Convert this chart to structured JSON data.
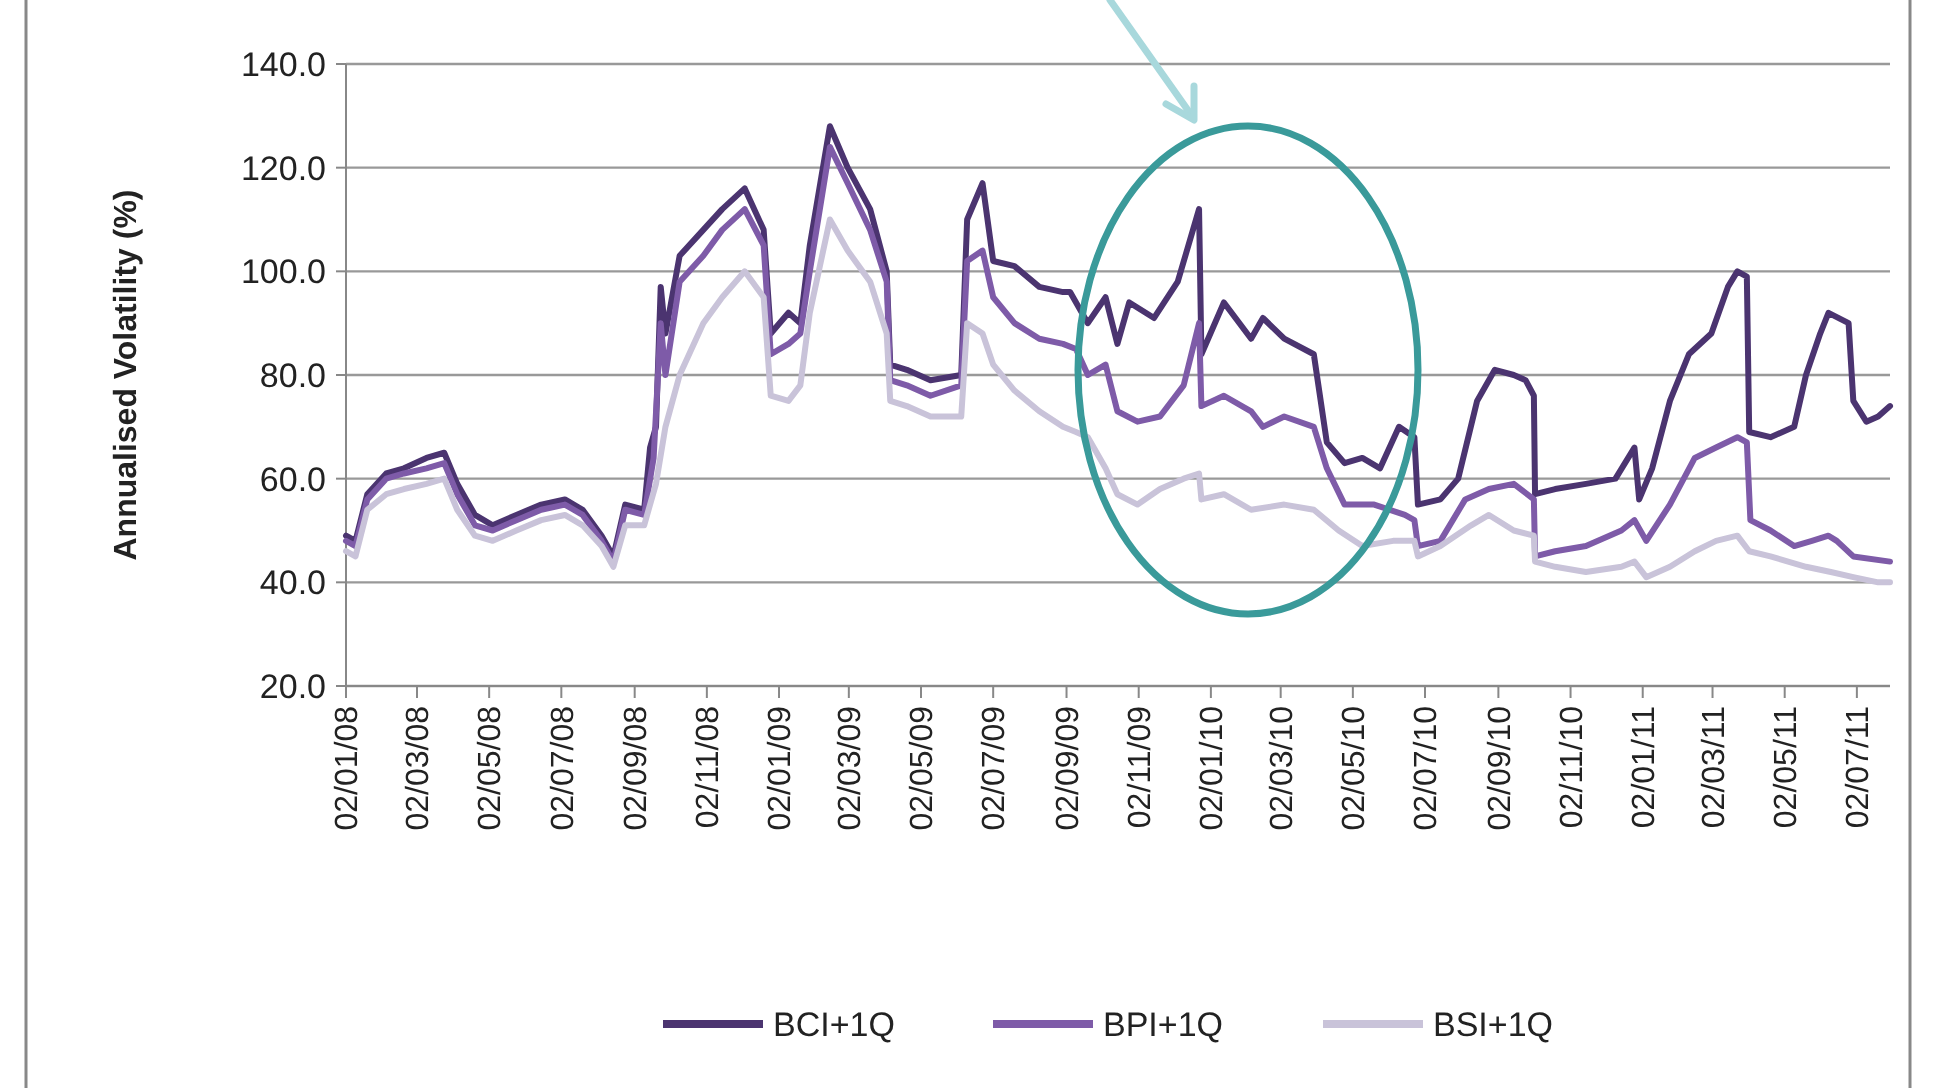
{
  "chart_data": {
    "type": "line",
    "ylabel": "Annualised Volatility (%)",
    "xlim": [
      "2008-01-02",
      "2011-07-30"
    ],
    "ylim": [
      20,
      140
    ],
    "yticks": [
      {
        "value": 20,
        "label": "20.0"
      },
      {
        "value": 40,
        "label": "40.0"
      },
      {
        "value": 60,
        "label": "60.0"
      },
      {
        "value": 80,
        "label": "80.0"
      },
      {
        "value": 100,
        "label": "100.0"
      },
      {
        "value": 120,
        "label": "120.0"
      },
      {
        "value": 140,
        "label": "140.0"
      }
    ],
    "xticks": [
      {
        "value": "2008-01-02",
        "label": "02/01/08"
      },
      {
        "value": "2008-03-02",
        "label": "02/03/08"
      },
      {
        "value": "2008-05-02",
        "label": "02/05/08"
      },
      {
        "value": "2008-07-02",
        "label": "02/07/08"
      },
      {
        "value": "2008-09-02",
        "label": "02/09/08"
      },
      {
        "value": "2008-11-02",
        "label": "02/11/08"
      },
      {
        "value": "2009-01-02",
        "label": "02/01/09"
      },
      {
        "value": "2009-03-02",
        "label": "02/03/09"
      },
      {
        "value": "2009-05-02",
        "label": "02/05/09"
      },
      {
        "value": "2009-07-02",
        "label": "02/07/09"
      },
      {
        "value": "2009-09-02",
        "label": "02/09/09"
      },
      {
        "value": "2009-11-02",
        "label": "02/11/09"
      },
      {
        "value": "2010-01-02",
        "label": "02/01/10"
      },
      {
        "value": "2010-03-02",
        "label": "02/03/10"
      },
      {
        "value": "2010-05-02",
        "label": "02/05/10"
      },
      {
        "value": "2010-07-02",
        "label": "02/07/10"
      },
      {
        "value": "2010-09-02",
        "label": "02/09/10"
      },
      {
        "value": "2010-11-02",
        "label": "02/11/10"
      },
      {
        "value": "2011-01-02",
        "label": "02/01/11"
      },
      {
        "value": "2011-03-02",
        "label": "02/03/11"
      },
      {
        "value": "2011-05-02",
        "label": "02/05/11"
      },
      {
        "value": "2011-07-02",
        "label": "02/07/11"
      }
    ],
    "grid": "y",
    "legend": "bottom",
    "line_style": "solid",
    "series": [
      {
        "name": "BCI+1Q",
        "color": "#4b3470",
        "x": [
          "2008-01-02",
          "2008-01-10",
          "2008-01-20",
          "2008-02-05",
          "2008-02-20",
          "2008-03-10",
          "2008-03-25",
          "2008-04-05",
          "2008-04-20",
          "2008-05-05",
          "2008-05-25",
          "2008-06-15",
          "2008-07-05",
          "2008-07-20",
          "2008-08-05",
          "2008-08-15",
          "2008-08-25",
          "2008-09-10",
          "2008-09-15",
          "2008-09-20",
          "2008-09-24",
          "2008-09-28",
          "2008-10-10",
          "2008-10-30",
          "2008-11-15",
          "2008-12-04",
          "2008-12-20",
          "2008-12-26",
          "2009-01-10",
          "2009-01-20",
          "2009-01-28",
          "2009-02-14",
          "2009-03-01",
          "2009-03-20",
          "2009-04-03",
          "2009-04-06",
          "2009-04-20",
          "2009-05-10",
          "2009-06-05",
          "2009-06-10",
          "2009-06-23",
          "2009-07-02",
          "2009-07-20",
          "2009-08-10",
          "2009-08-30",
          "2009-09-05",
          "2009-09-20",
          "2009-10-05",
          "2009-10-15",
          "2009-10-25",
          "2009-11-15",
          "2009-12-05",
          "2009-12-23",
          "2009-12-25",
          "2010-01-13",
          "2010-02-05",
          "2010-02-15",
          "2010-03-05",
          "2010-03-30",
          "2010-04-10",
          "2010-04-25",
          "2010-05-10",
          "2010-05-25",
          "2010-06-10",
          "2010-06-23",
          "2010-06-26",
          "2010-07-15",
          "2010-07-30",
          "2010-08-15",
          "2010-08-30",
          "2010-09-15",
          "2010-09-25",
          "2010-10-02",
          "2010-10-03",
          "2010-10-20",
          "2010-11-15",
          "2010-12-10",
          "2010-12-26",
          "2010-12-30",
          "2011-01-10",
          "2011-01-25",
          "2011-02-10",
          "2011-03-01",
          "2011-03-15",
          "2011-03-23",
          "2011-03-31",
          "2011-04-02",
          "2011-04-20",
          "2011-05-10",
          "2011-05-20",
          "2011-06-01",
          "2011-06-08",
          "2011-06-25",
          "2011-06-29",
          "2011-07-10",
          "2011-07-20",
          "2011-07-30"
        ],
        "values": [
          49,
          48,
          57,
          61,
          62,
          64,
          65,
          59,
          53,
          51,
          53,
          55,
          56,
          54,
          49,
          45,
          55,
          54,
          66,
          70,
          97,
          88,
          103,
          108,
          112,
          116,
          108,
          88,
          92,
          90,
          105,
          128,
          120,
          112,
          100,
          82,
          81,
          79,
          80,
          110,
          117,
          102,
          101,
          97,
          96,
          96,
          90,
          95,
          86,
          94,
          91,
          98,
          112,
          84,
          94,
          87,
          91,
          87,
          84,
          67,
          63,
          64,
          62,
          70,
          68,
          55,
          56,
          60,
          75,
          81,
          80,
          79,
          76,
          57,
          58,
          59,
          60,
          66,
          56,
          62,
          75,
          84,
          88,
          97,
          100,
          99,
          69,
          68,
          70,
          80,
          88,
          92,
          90,
          75,
          71,
          72,
          74
        ]
      },
      {
        "name": "BPI+1Q",
        "color": "#7e5ba8",
        "x": [
          "2008-01-02",
          "2008-01-10",
          "2008-01-20",
          "2008-02-05",
          "2008-02-20",
          "2008-03-10",
          "2008-03-25",
          "2008-04-05",
          "2008-04-20",
          "2008-05-05",
          "2008-05-25",
          "2008-06-15",
          "2008-07-05",
          "2008-07-20",
          "2008-08-05",
          "2008-08-15",
          "2008-08-25",
          "2008-09-10",
          "2008-09-18",
          "2008-09-24",
          "2008-09-28",
          "2008-10-10",
          "2008-10-30",
          "2008-11-15",
          "2008-12-04",
          "2008-12-20",
          "2008-12-26",
          "2009-01-10",
          "2009-01-20",
          "2009-01-28",
          "2009-02-14",
          "2009-03-01",
          "2009-03-20",
          "2009-04-03",
          "2009-04-06",
          "2009-04-20",
          "2009-05-10",
          "2009-06-05",
          "2009-06-10",
          "2009-06-23",
          "2009-07-02",
          "2009-07-20",
          "2009-08-10",
          "2009-08-30",
          "2009-09-10",
          "2009-09-20",
          "2009-10-05",
          "2009-10-15",
          "2009-11-01",
          "2009-11-20",
          "2009-12-10",
          "2009-12-23",
          "2009-12-25",
          "2010-01-13",
          "2010-02-05",
          "2010-02-15",
          "2010-03-05",
          "2010-03-30",
          "2010-04-10",
          "2010-04-25",
          "2010-05-20",
          "2010-06-15",
          "2010-06-23",
          "2010-06-26",
          "2010-07-15",
          "2010-08-05",
          "2010-08-25",
          "2010-09-15",
          "2010-10-02",
          "2010-10-03",
          "2010-10-20",
          "2010-11-15",
          "2010-12-15",
          "2010-12-26",
          "2011-01-05",
          "2011-01-25",
          "2011-02-15",
          "2011-03-05",
          "2011-03-23",
          "2011-03-31",
          "2011-04-03",
          "2011-04-20",
          "2011-05-10",
          "2011-05-25",
          "2011-06-08",
          "2011-06-15",
          "2011-06-29",
          "2011-07-30"
        ],
        "values": [
          48,
          47,
          56,
          60,
          61,
          62,
          63,
          57,
          51,
          50,
          52,
          54,
          55,
          53,
          48,
          44,
          54,
          53,
          64,
          90,
          80,
          98,
          103,
          108,
          112,
          105,
          84,
          86,
          88,
          100,
          124,
          117,
          108,
          98,
          79,
          78,
          76,
          78,
          102,
          104,
          95,
          90,
          87,
          86,
          85,
          80,
          82,
          73,
          71,
          72,
          78,
          90,
          74,
          76,
          73,
          70,
          72,
          70,
          62,
          55,
          55,
          53,
          52,
          47,
          48,
          56,
          58,
          59,
          56,
          45,
          46,
          47,
          50,
          52,
          48,
          55,
          64,
          66,
          68,
          67,
          52,
          50,
          47,
          48,
          49,
          48,
          45,
          44
        ]
      },
      {
        "name": "BSI+1Q",
        "color": "#c9c3d9",
        "x": [
          "2008-01-02",
          "2008-01-10",
          "2008-01-20",
          "2008-02-05",
          "2008-02-20",
          "2008-03-10",
          "2008-03-25",
          "2008-04-05",
          "2008-04-20",
          "2008-05-05",
          "2008-05-25",
          "2008-06-15",
          "2008-07-05",
          "2008-07-20",
          "2008-08-05",
          "2008-08-15",
          "2008-08-25",
          "2008-09-10",
          "2008-09-20",
          "2008-09-28",
          "2008-10-10",
          "2008-10-30",
          "2008-11-15",
          "2008-12-04",
          "2008-12-20",
          "2008-12-26",
          "2009-01-10",
          "2009-01-20",
          "2009-01-28",
          "2009-02-14",
          "2009-03-01",
          "2009-03-20",
          "2009-04-03",
          "2009-04-06",
          "2009-04-20",
          "2009-05-10",
          "2009-06-05",
          "2009-06-10",
          "2009-06-23",
          "2009-07-02",
          "2009-07-20",
          "2009-08-10",
          "2009-08-30",
          "2009-09-10",
          "2009-09-20",
          "2009-10-05",
          "2009-10-15",
          "2009-11-01",
          "2009-11-20",
          "2009-12-10",
          "2009-12-23",
          "2009-12-25",
          "2010-01-13",
          "2010-02-05",
          "2010-03-05",
          "2010-03-30",
          "2010-04-20",
          "2010-05-10",
          "2010-06-05",
          "2010-06-23",
          "2010-06-26",
          "2010-07-15",
          "2010-08-10",
          "2010-08-25",
          "2010-09-15",
          "2010-10-02",
          "2010-10-03",
          "2010-10-20",
          "2010-11-15",
          "2010-12-15",
          "2010-12-26",
          "2011-01-05",
          "2011-01-25",
          "2011-02-15",
          "2011-03-05",
          "2011-03-23",
          "2011-04-02",
          "2011-04-20",
          "2011-05-20",
          "2011-06-10",
          "2011-06-29",
          "2011-07-20",
          "2011-07-30"
        ],
        "values": [
          46,
          45,
          54,
          57,
          58,
          59,
          60,
          54,
          49,
          48,
          50,
          52,
          53,
          51,
          47,
          43,
          51,
          51,
          59,
          70,
          80,
          90,
          95,
          100,
          95,
          76,
          75,
          78,
          92,
          110,
          104,
          98,
          88,
          75,
          74,
          72,
          72,
          90,
          88,
          82,
          77,
          73,
          70,
          69,
          68,
          62,
          57,
          55,
          58,
          60,
          61,
          56,
          57,
          54,
          55,
          54,
          50,
          47,
          48,
          48,
          45,
          47,
          51,
          53,
          50,
          49,
          44,
          43,
          42,
          43,
          44,
          41,
          43,
          46,
          48,
          49,
          46,
          45,
          43,
          42,
          41,
          40,
          40
        ]
      }
    ]
  }
}
